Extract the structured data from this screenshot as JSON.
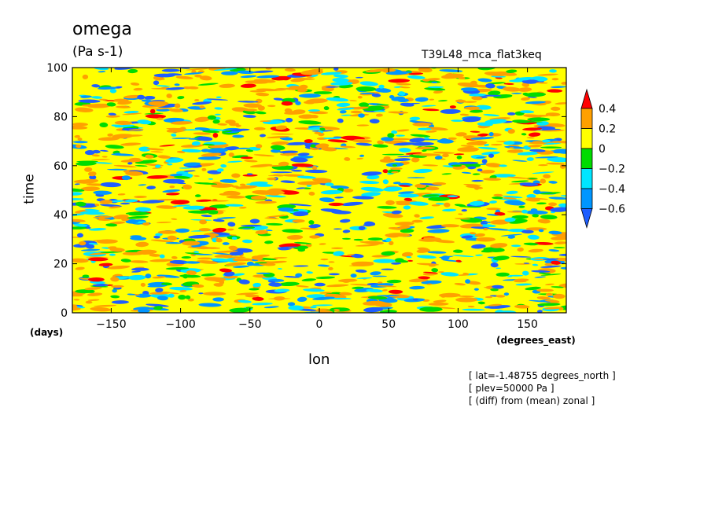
{
  "title": "omega",
  "units": "(Pa s-1)",
  "run_name": "T39L48_mca_flat3keq",
  "notes": [
    "[ lat=-1.48755 degrees_north ]",
    "[ plev=50000 Pa ]",
    "[ (diff) from (mean) zonal ]"
  ],
  "chart_data": {
    "type": "heatmap",
    "title": "omega",
    "subtitle": "(Pa s-1)",
    "xlabel": "lon",
    "xunit": "(degrees_east)",
    "ylabel": "time",
    "yunit": "(days)",
    "xlim": [
      -178,
      178
    ],
    "ylim": [
      0,
      100
    ],
    "xticks": [
      -150,
      -100,
      -50,
      0,
      50,
      100,
      150
    ],
    "yticks": [
      0,
      20,
      40,
      60,
      80,
      100
    ],
    "xtick_labels": [
      "−150",
      "−100",
      "−50",
      "0",
      "50",
      "100",
      "150"
    ],
    "ytick_labels": [
      "0",
      "20",
      "40",
      "60",
      "80",
      "100"
    ],
    "colorbar": {
      "levels": [
        -0.6,
        -0.4,
        -0.2,
        0,
        0.2,
        0.4
      ],
      "labels": [
        "−0.6",
        "−0.4",
        "−0.2",
        "0",
        "0.2",
        "0.4"
      ],
      "colors": [
        "#1e5eff",
        "#0096ff",
        "#00e6ff",
        "#00dc00",
        "#ffff00",
        "#ffa000",
        "#ff0000"
      ]
    },
    "grid": false,
    "legend": "colorbar right"
  }
}
